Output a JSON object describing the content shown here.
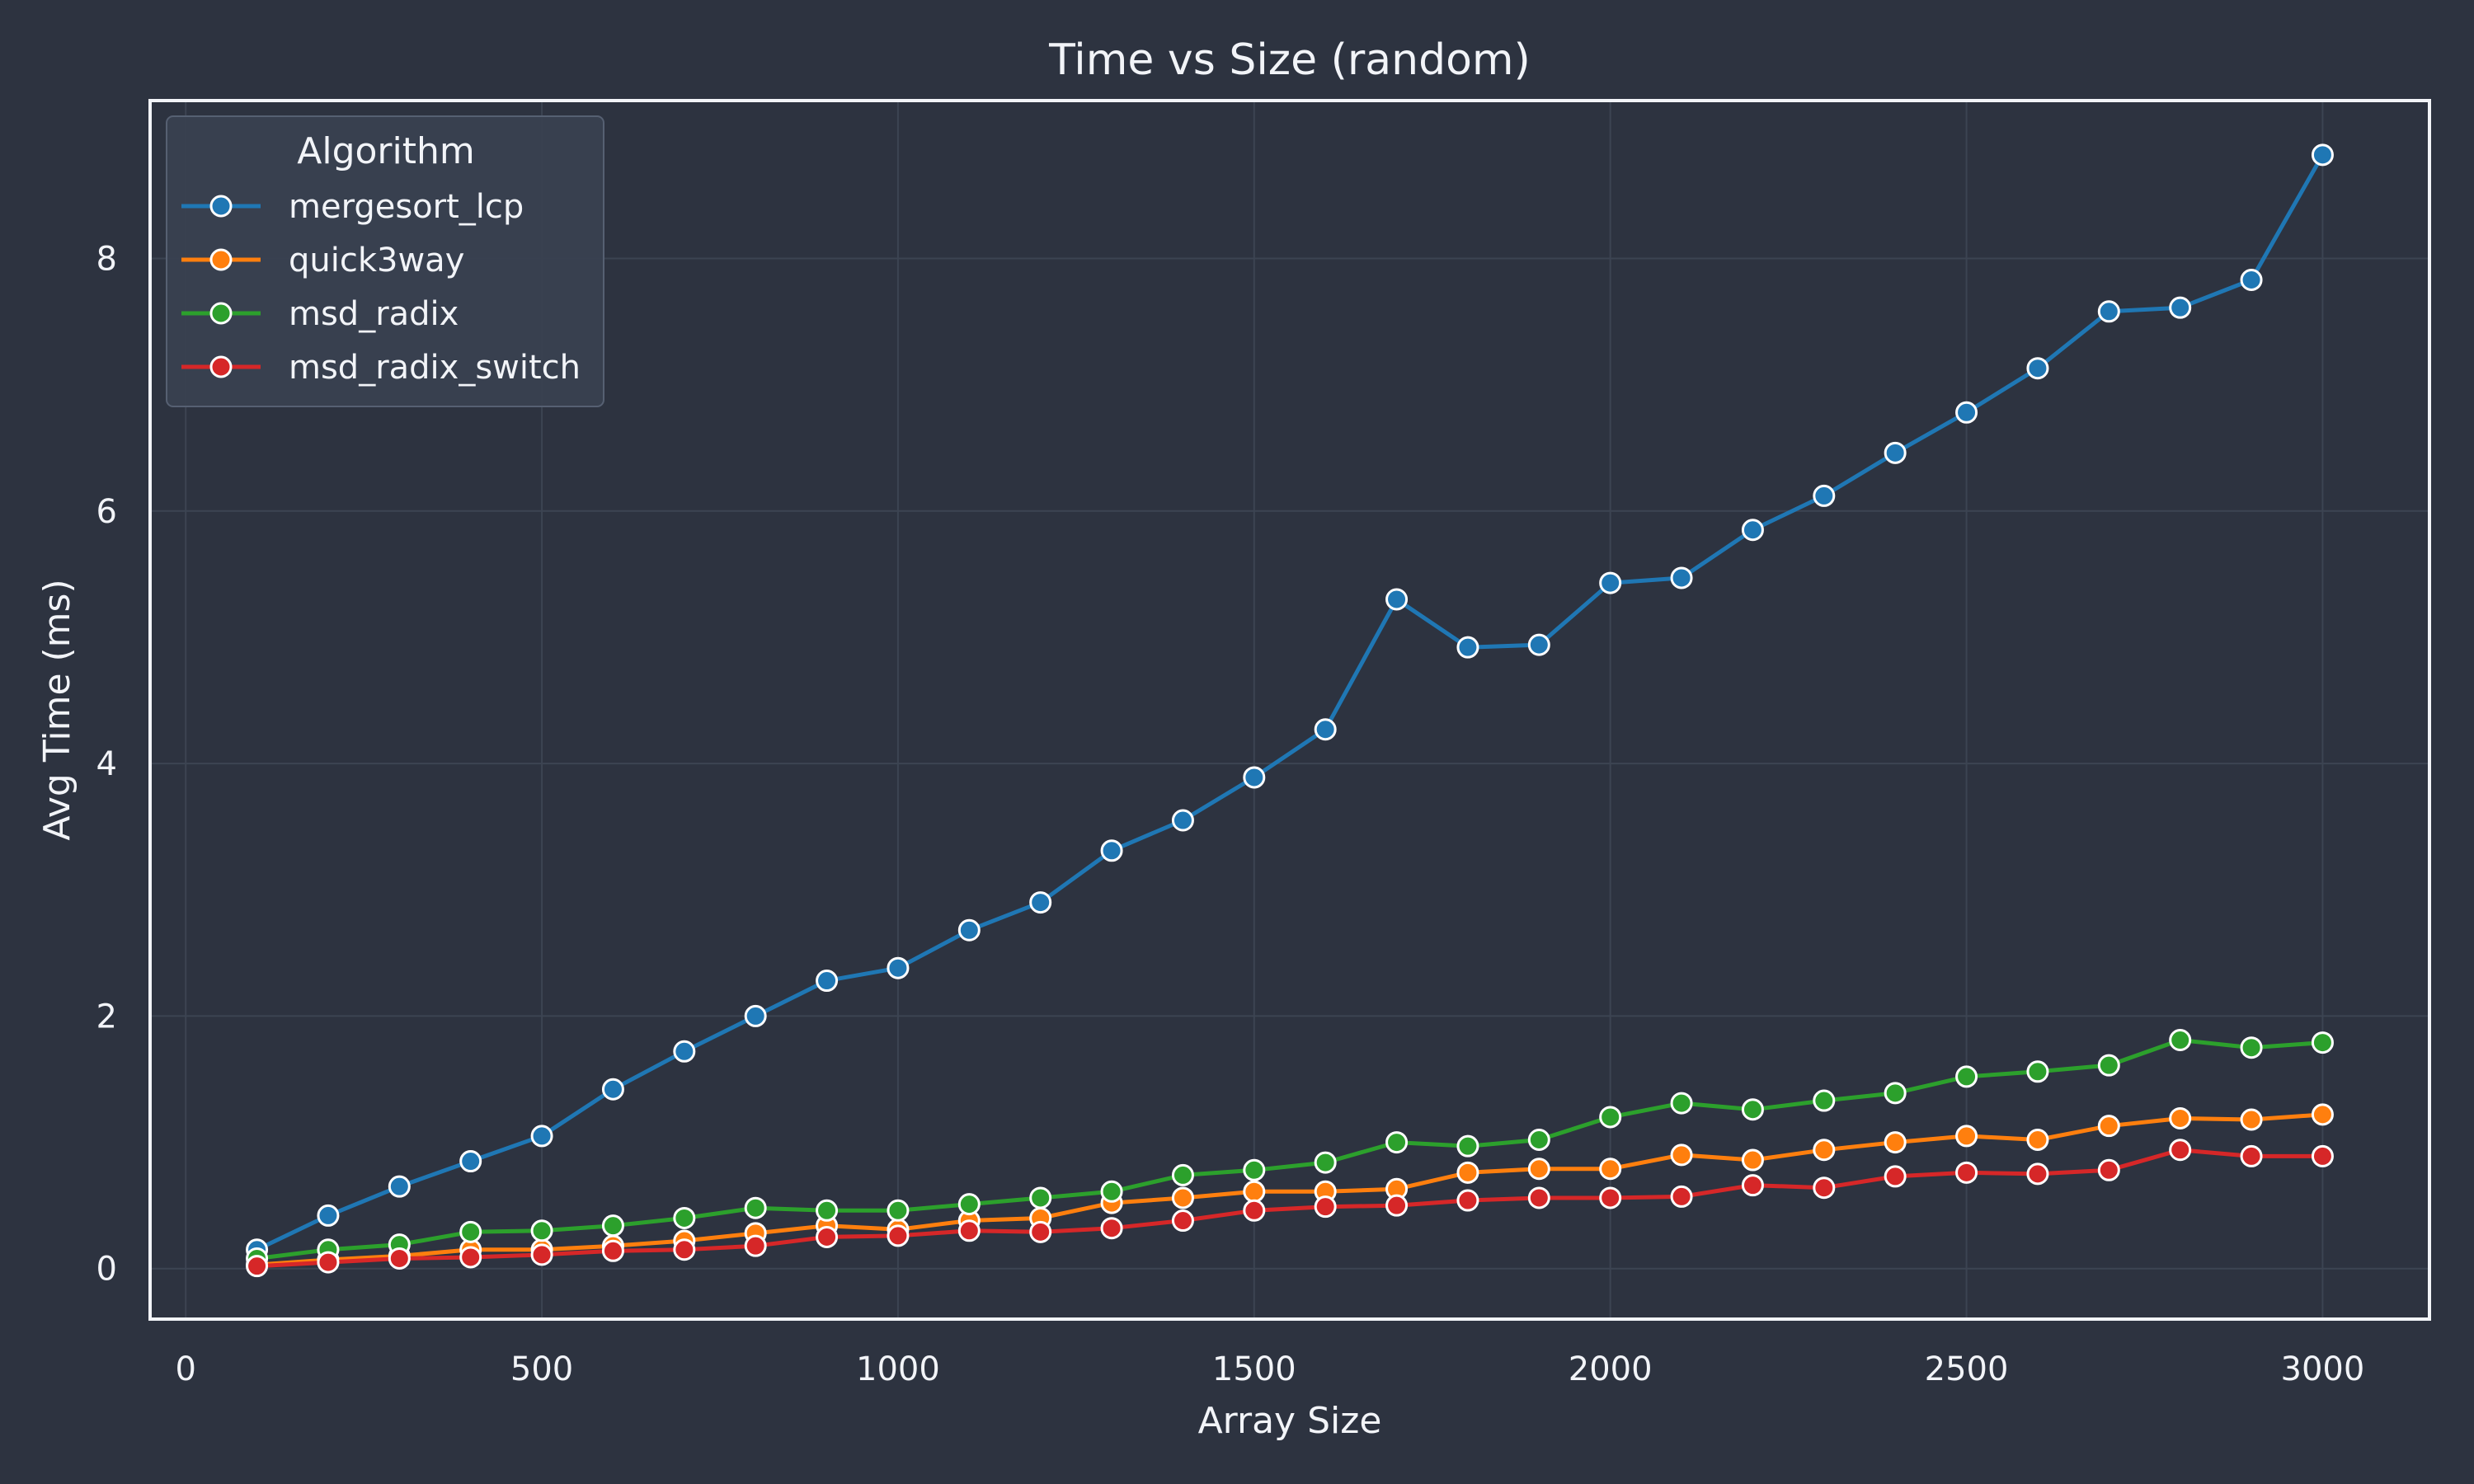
{
  "chart_data": {
    "type": "line",
    "title": "Time vs Size (random)",
    "xlabel": "Array Size",
    "ylabel": "Avg Time (ms)",
    "xlim": [
      -50,
      3150
    ],
    "ylim": [
      -0.4,
      9.25
    ],
    "x_ticks": [
      0,
      500,
      1000,
      1500,
      2000,
      2500,
      3000
    ],
    "y_ticks": [
      0,
      2,
      4,
      6,
      8
    ],
    "grid": true,
    "legend": {
      "title": "Algorithm",
      "placement": "top-left"
    },
    "x": [
      100,
      200,
      300,
      400,
      500,
      600,
      700,
      800,
      900,
      1000,
      1100,
      1200,
      1300,
      1400,
      1500,
      1600,
      1700,
      1800,
      1900,
      2000,
      2100,
      2200,
      2300,
      2400,
      2500,
      2600,
      2700,
      2800,
      2900,
      3000
    ],
    "series": [
      {
        "name": "mergesort_lcp",
        "color": "#1f77b4",
        "values": [
          0.15,
          0.42,
          0.65,
          0.85,
          1.05,
          1.42,
          1.72,
          2.0,
          2.28,
          2.38,
          2.68,
          2.9,
          3.31,
          3.55,
          3.89,
          4.27,
          5.3,
          4.92,
          4.94,
          5.43,
          5.47,
          5.85,
          6.12,
          6.46,
          6.78,
          7.13,
          7.58,
          7.61,
          7.83,
          8.82
        ]
      },
      {
        "name": "quick3way",
        "color": "#ff7f0e",
        "values": [
          0.03,
          0.07,
          0.1,
          0.15,
          0.15,
          0.18,
          0.22,
          0.28,
          0.34,
          0.31,
          0.38,
          0.4,
          0.52,
          0.56,
          0.61,
          0.61,
          0.63,
          0.76,
          0.79,
          0.79,
          0.9,
          0.86,
          0.94,
          1.0,
          1.05,
          1.02,
          1.13,
          1.19,
          1.18,
          1.22
        ]
      },
      {
        "name": "msd_radix",
        "color": "#2ca02c",
        "values": [
          0.08,
          0.15,
          0.19,
          0.29,
          0.3,
          0.34,
          0.4,
          0.48,
          0.46,
          0.46,
          0.51,
          0.56,
          0.61,
          0.74,
          0.78,
          0.84,
          1.0,
          0.97,
          1.02,
          1.2,
          1.31,
          1.26,
          1.33,
          1.39,
          1.52,
          1.56,
          1.61,
          1.81,
          1.75,
          1.79
        ]
      },
      {
        "name": "msd_radix_switch",
        "color": "#d62728",
        "values": [
          0.02,
          0.05,
          0.08,
          0.09,
          0.11,
          0.14,
          0.15,
          0.18,
          0.25,
          0.26,
          0.3,
          0.29,
          0.32,
          0.38,
          0.46,
          0.49,
          0.5,
          0.54,
          0.56,
          0.56,
          0.57,
          0.66,
          0.64,
          0.73,
          0.76,
          0.75,
          0.78,
          0.94,
          0.89,
          0.89
        ]
      }
    ]
  },
  "colors": {
    "background": "#2d3340",
    "grid": "#3c4452",
    "frame": "#f2f4f8",
    "text": "#f2f4f8",
    "legend_background": "#394150",
    "legend_border": "#566072",
    "marker_edge": "#ffffff"
  }
}
